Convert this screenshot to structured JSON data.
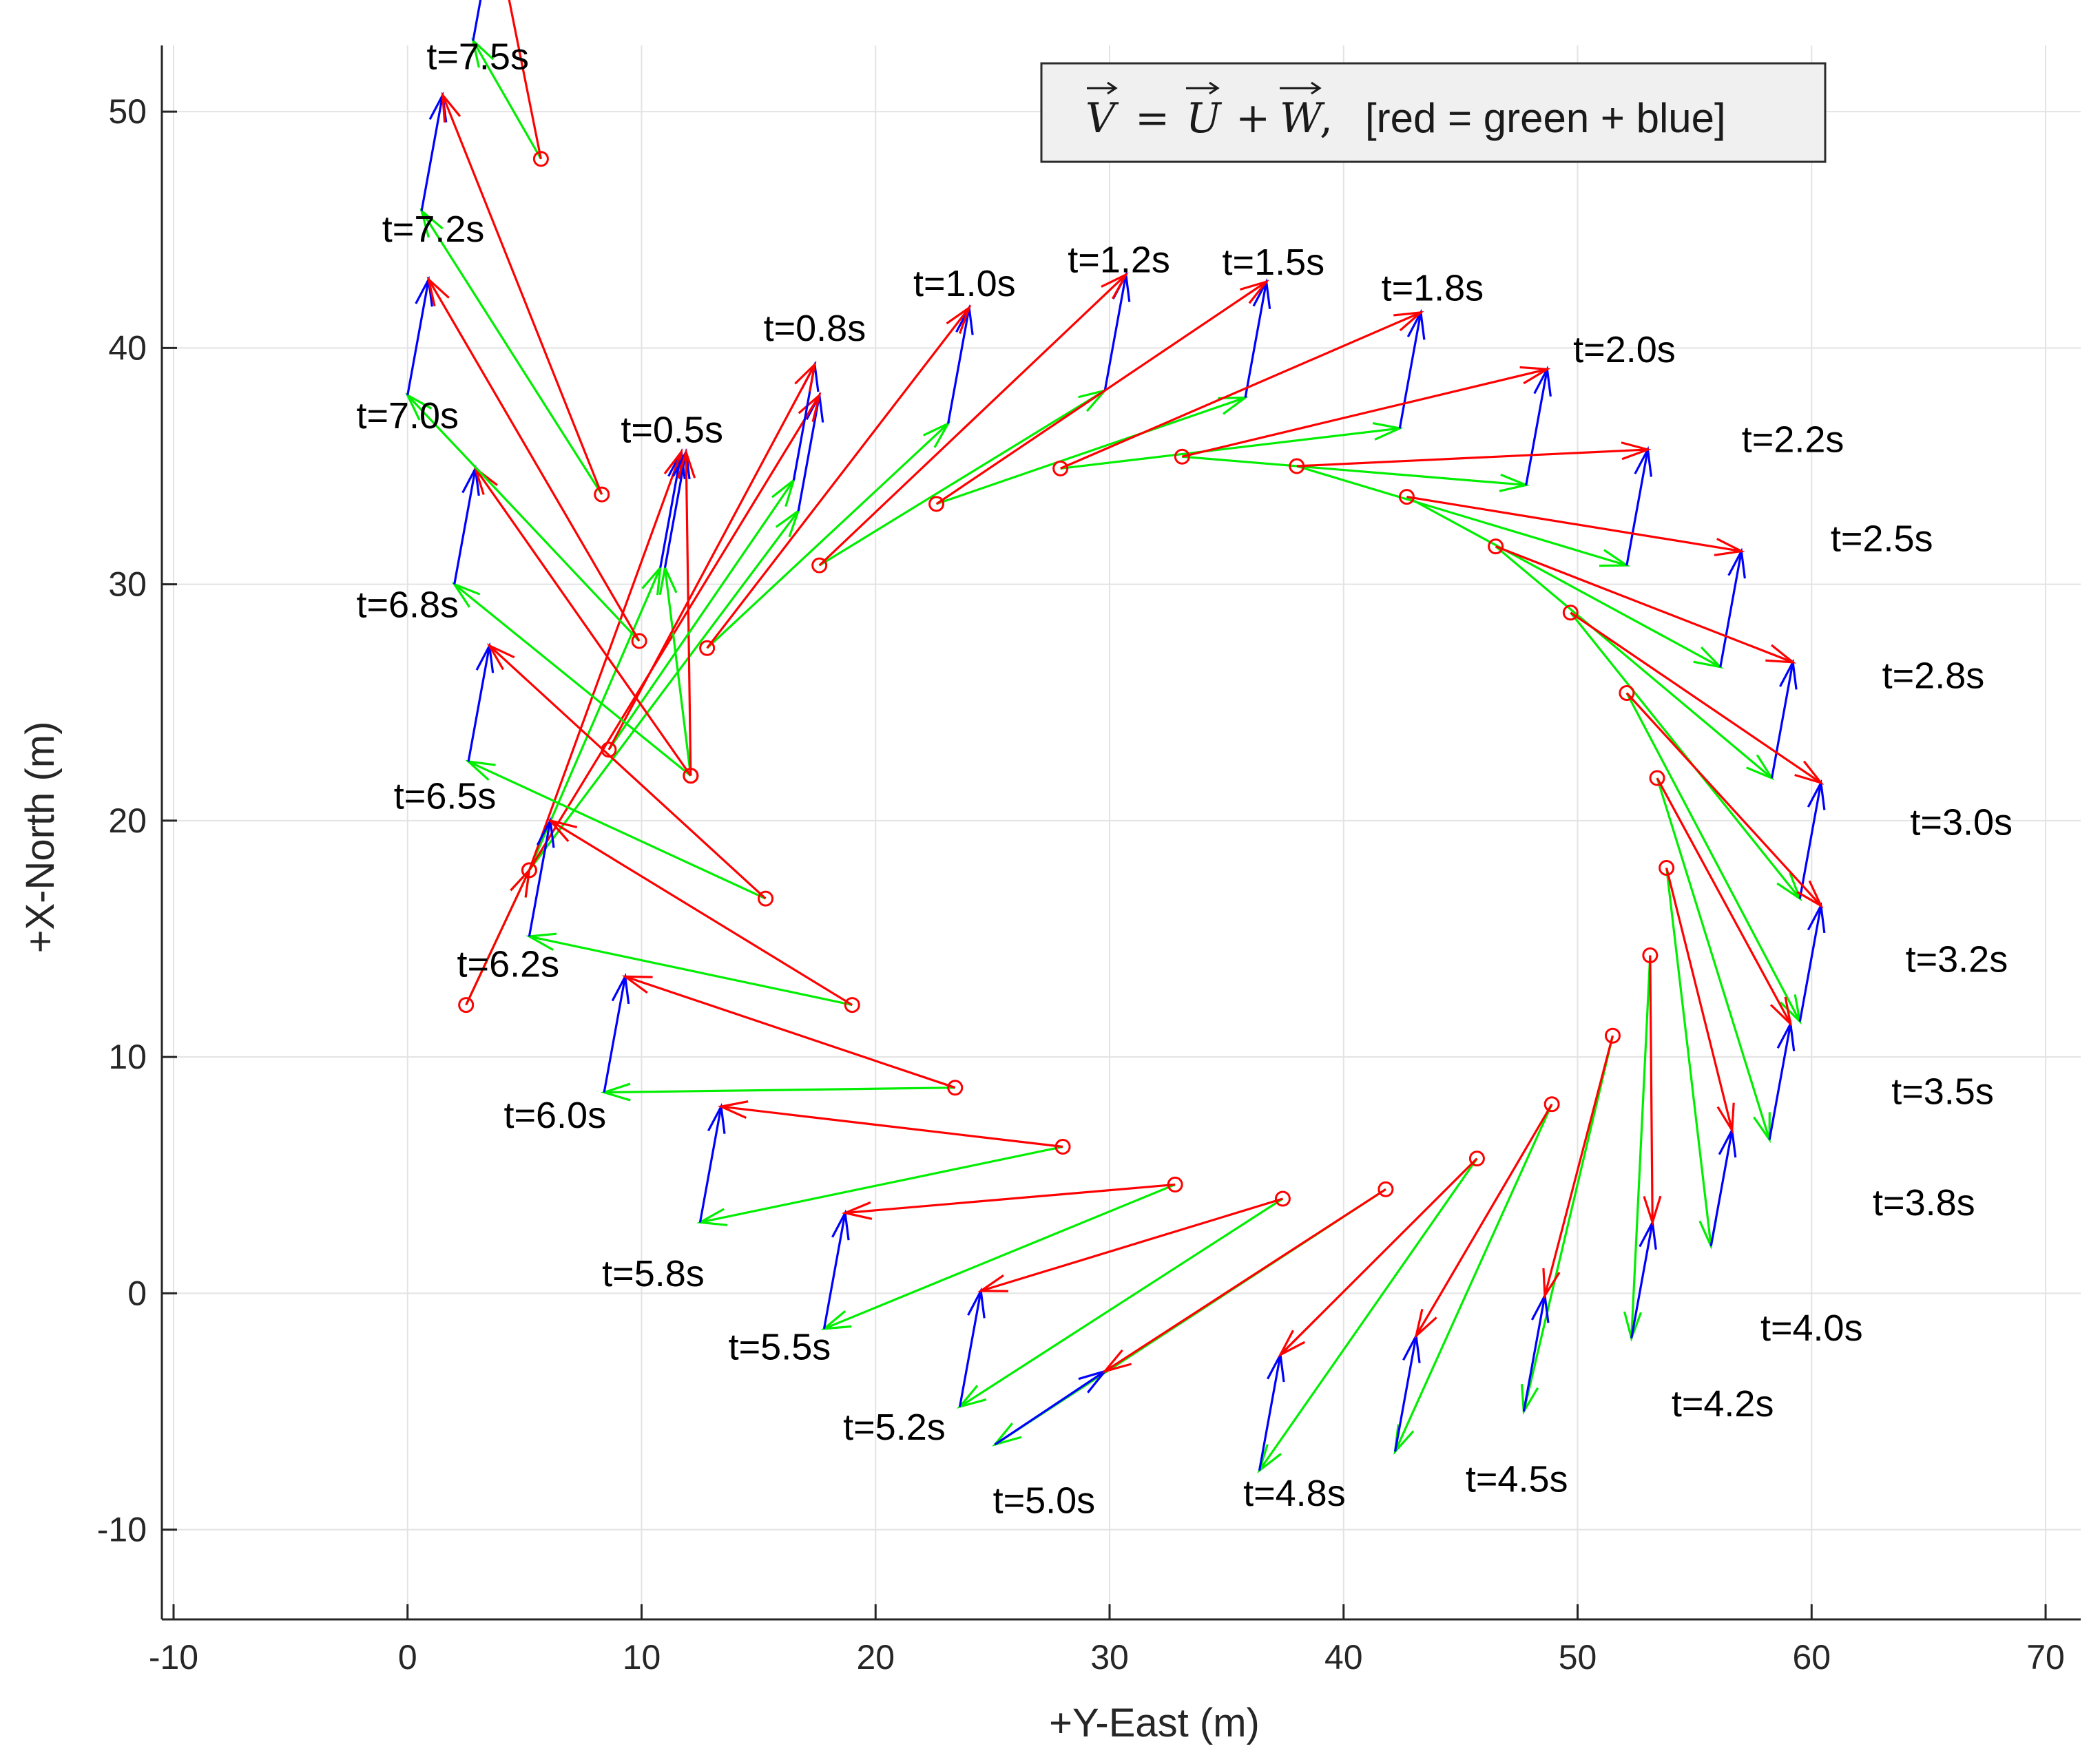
{
  "chart_data": {
    "type": "vector-field",
    "xlabel": "+Y-East (m)",
    "ylabel": "+X-North (m)",
    "xlim": [
      -10.5,
      71.5
    ],
    "ylim": [
      -13.8,
      52.8
    ],
    "xticks": [
      -10,
      0,
      10,
      20,
      30,
      40,
      50,
      60,
      70
    ],
    "yticks": [
      -10,
      0,
      10,
      20,
      30,
      40,
      50
    ],
    "grid": true,
    "legend": {
      "equation": {
        "V": "V",
        "U": "U",
        "W": "W",
        "eq": "=",
        "plus": "+",
        "comma": ","
      },
      "description": "[red = green + blue]",
      "position": "top-right"
    },
    "series_colors": {
      "air_velocity": "#00ee00",
      "wind": "#0000ff",
      "ground_velocity": "#ff0000"
    },
    "vectors": [
      {
        "t": "t=0.5s",
        "p": [
          12.1,
          21.9
        ],
        "u": [
          -1.1,
          8.8
        ],
        "w": [
          0.9,
          4.9
        ]
      },
      {
        "t": "t=0.8s",
        "p": [
          8.6,
          23.0
        ],
        "u": [
          7.9,
          11.4
        ],
        "w": [
          0.9,
          4.9
        ]
      },
      {
        "t": "t=1.0s",
        "p": [
          12.8,
          27.3
        ],
        "u": [
          10.3,
          9.5
        ],
        "w": [
          0.9,
          4.9
        ]
      },
      {
        "t": "t=1.2s",
        "p": [
          17.6,
          30.8
        ],
        "u": [
          12.2,
          7.4
        ],
        "w": [
          0.9,
          4.9
        ]
      },
      {
        "t": "t=1.5s",
        "p": [
          22.6,
          33.4
        ],
        "u": [
          13.2,
          4.5
        ],
        "w": [
          0.9,
          4.9
        ]
      },
      {
        "t": "t=1.8s",
        "p": [
          27.9,
          34.9
        ],
        "u": [
          14.5,
          1.7
        ],
        "w": [
          0.9,
          4.9
        ]
      },
      {
        "t": "t=2.0s",
        "p": [
          33.1,
          35.4
        ],
        "u": [
          14.7,
          -1.2
        ],
        "w": [
          0.9,
          4.9
        ]
      },
      {
        "t": "t=2.2s",
        "p": [
          38.0,
          35.0
        ],
        "u": [
          14.1,
          -4.2
        ],
        "w": [
          0.9,
          4.9
        ]
      },
      {
        "t": "t=2.5s",
        "p": [
          42.7,
          33.7
        ],
        "u": [
          13.4,
          -7.2
        ],
        "w": [
          0.9,
          4.9
        ]
      },
      {
        "t": "t=2.8s",
        "p": [
          46.5,
          31.6
        ],
        "u": [
          11.8,
          -9.8
        ],
        "w": [
          0.9,
          4.9
        ]
      },
      {
        "t": "t=3.0s",
        "p": [
          49.7,
          28.8
        ],
        "u": [
          9.8,
          -12.1
        ],
        "w": [
          0.9,
          4.9
        ]
      },
      {
        "t": "t=3.2s",
        "p": [
          52.1,
          25.4
        ],
        "u": [
          7.4,
          -13.9
        ],
        "w": [
          0.9,
          4.9
        ]
      },
      {
        "t": "t=3.5s",
        "p": [
          53.4,
          21.8
        ],
        "u": [
          4.8,
          -15.3
        ],
        "w": [
          0.9,
          4.9
        ]
      },
      {
        "t": "t=3.8s",
        "p": [
          53.8,
          18.0
        ],
        "u": [
          1.9,
          -16.0
        ],
        "w": [
          0.9,
          4.9
        ]
      },
      {
        "t": "t=4.0s",
        "p": [
          53.1,
          14.3
        ],
        "u": [
          -0.8,
          -16.2
        ],
        "w": [
          0.9,
          4.9
        ]
      },
      {
        "t": "t=4.2s",
        "p": [
          51.5,
          10.9
        ],
        "u": [
          -3.8,
          -15.9
        ],
        "w": [
          0.9,
          4.9
        ]
      },
      {
        "t": "t=4.5s",
        "p": [
          48.9,
          8.0
        ],
        "u": [
          -6.7,
          -14.7
        ],
        "w": [
          0.9,
          4.9
        ]
      },
      {
        "t": "t=4.8s",
        "p": [
          45.7,
          5.7
        ],
        "u": [
          -9.3,
          -13.2
        ],
        "w": [
          0.9,
          4.9
        ]
      },
      {
        "t": "t=5.0s",
        "p": [
          41.8,
          4.4
        ],
        "u": [
          -16.7,
          -10.8
        ],
        "w": [
          4.7,
          3.1
        ]
      },
      {
        "t": "t=5.2s",
        "p": [
          37.4,
          4.0
        ],
        "u": [
          -13.8,
          -8.8
        ],
        "w": [
          0.9,
          4.9
        ]
      },
      {
        "t": "t=5.5s",
        "p": [
          32.8,
          4.6
        ],
        "u": [
          -15.0,
          -6.1
        ],
        "w": [
          0.9,
          4.9
        ]
      },
      {
        "t": "t=5.8s",
        "p": [
          28.0,
          6.2
        ],
        "u": [
          -15.5,
          -3.2
        ],
        "w": [
          0.9,
          4.9
        ]
      },
      {
        "t": "t=6.0s",
        "p": [
          23.4,
          8.7
        ],
        "u": [
          -15.0,
          -0.2
        ],
        "w": [
          0.9,
          4.9
        ]
      },
      {
        "t": "t=6.2s",
        "p": [
          19.0,
          12.2
        ],
        "u": [
          -13.8,
          2.9
        ],
        "w": [
          0.9,
          4.9
        ]
      },
      {
        "t": "t=6.5s",
        "p": [
          15.3,
          16.7
        ],
        "u": [
          -12.7,
          5.8
        ],
        "w": [
          0.9,
          4.9
        ]
      },
      {
        "t": "t=6.8s",
        "p": [
          12.1,
          21.9
        ],
        "u": [
          -10.1,
          8.1
        ],
        "w": [
          0.9,
          4.9
        ]
      },
      {
        "t": "t=7.0s",
        "p": [
          9.9,
          27.6
        ],
        "u": [
          -9.9,
          10.4
        ],
        "w": [
          0.9,
          4.9
        ]
      },
      {
        "t": "t=7.2s",
        "p": [
          8.3,
          33.8
        ],
        "u": [
          -7.7,
          12.0
        ],
        "w": [
          0.9,
          4.9
        ]
      },
      {
        "t": "t=7.5s",
        "p": [
          5.7,
          48.0
        ],
        "u": [
          -2.9,
          5.0
        ],
        "w": [
          0.9,
          4.9
        ]
      }
    ],
    "extra_vectors": [
      {
        "p": [
          2.5,
          12.2
        ],
        "u": [
          2.7,
          5.7
        ],
        "w": [
          0.0,
          0.0
        ]
      },
      {
        "p": [
          5.2,
          17.9
        ],
        "u": [
          5.6,
          12.8
        ],
        "w": [
          0.9,
          4.9
        ]
      },
      {
        "p": [
          5.2,
          17.9
        ],
        "u": [
          11.5,
          15.2
        ],
        "w": [
          0.9,
          4.9
        ]
      }
    ],
    "labels_at": {
      "t=0.5s": [
        11.3,
        36.0
      ],
      "t=0.8s": [
        17.4,
        40.3
      ],
      "t=1.0s": [
        23.8,
        42.2
      ],
      "t=1.2s": [
        30.4,
        43.2
      ],
      "t=1.5s": [
        37.0,
        43.1
      ],
      "t=1.8s": [
        43.8,
        42.0
      ],
      "t=2.0s": [
        52.0,
        39.4
      ],
      "t=2.2s": [
        59.2,
        35.6
      ],
      "t=2.5s": [
        63.0,
        31.4
      ],
      "t=2.8s": [
        65.2,
        25.6
      ],
      "t=3.0s": [
        66.4,
        19.4
      ],
      "t=3.2s": [
        66.2,
        13.6
      ],
      "t=3.5s": [
        65.6,
        8.0
      ],
      "t=3.8s": [
        64.8,
        3.3
      ],
      "t=4.0s": [
        60.0,
        -2.0
      ],
      "t=4.2s": [
        56.2,
        -5.2
      ],
      "t=4.5s": [
        47.4,
        -8.4
      ],
      "t=4.8s": [
        37.9,
        -9.0
      ],
      "t=5.0s": [
        27.2,
        -9.3
      ],
      "t=5.2s": [
        20.8,
        -6.2
      ],
      "t=5.5s": [
        15.9,
        -2.8
      ],
      "t=5.8s": [
        10.5,
        0.3
      ],
      "t=6.0s": [
        6.3,
        7.0
      ],
      "t=6.2s": [
        4.3,
        13.4
      ],
      "t=6.5s": [
        1.6,
        20.5
      ],
      "t=6.8s": [
        0.0,
        28.6
      ],
      "t=7.0s": [
        0.0,
        36.6
      ],
      "t=7.2s": [
        1.1,
        44.5
      ],
      "t=7.5s": [
        3.0,
        51.8
      ]
    }
  }
}
